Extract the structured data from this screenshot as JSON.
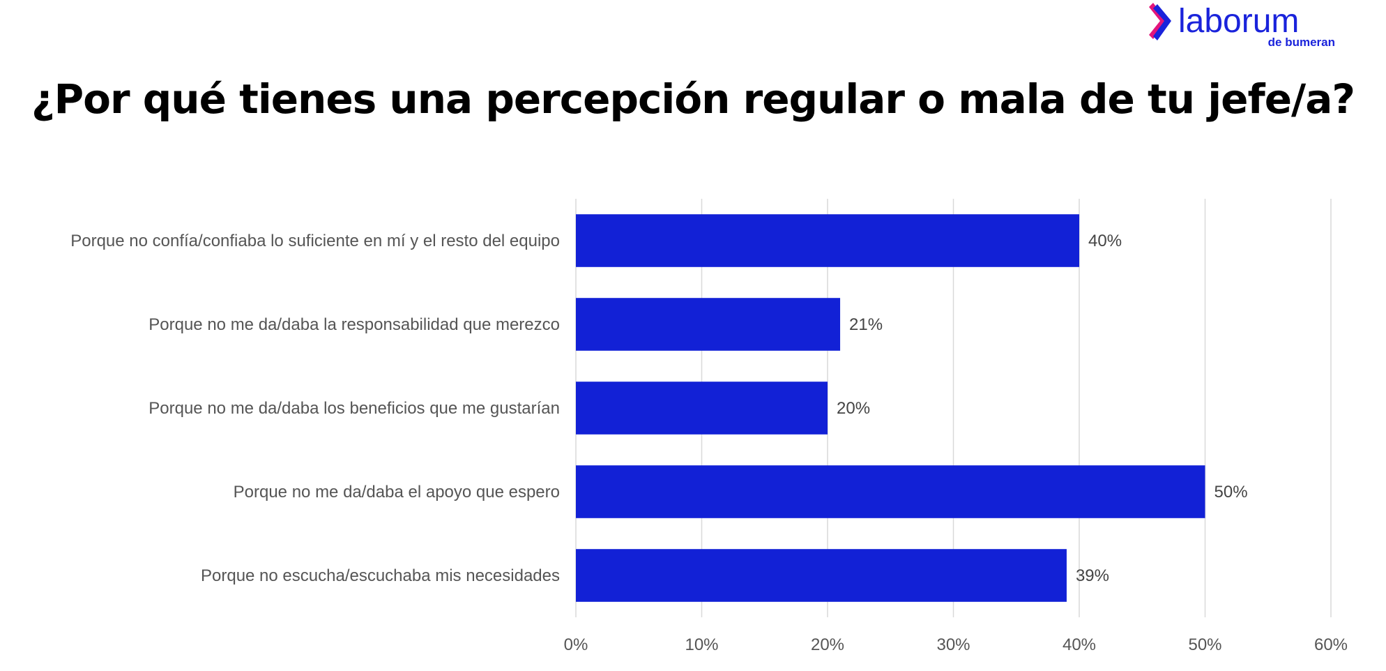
{
  "brand": {
    "name": "laborum",
    "tagline": "de bumeran",
    "color_primary": "#1A23DB",
    "color_accent": "#E3157B"
  },
  "chart_data": {
    "type": "bar",
    "orientation": "horizontal",
    "title": "¿Por qué tienes una percepción regular o mala de tu jefe/a?",
    "categories": [
      "Porque no confía/confiaba lo suficiente en mí y el resto del equipo",
      "Porque no me da/daba la responsabilidad que merezco",
      "Porque no me da/daba los beneficios que me gustarían",
      "Porque no me da/daba el apoyo que espero",
      "Porque no escucha/escuchaba mis necesidades"
    ],
    "values": [
      40,
      21,
      20,
      50,
      39
    ],
    "data_labels": [
      "40%",
      "21%",
      "20%",
      "50%",
      "39%"
    ],
    "xlim": [
      0,
      60
    ],
    "xticks": [
      0,
      10,
      20,
      30,
      40,
      50,
      60
    ],
    "xtick_labels": [
      "0%",
      "10%",
      "20%",
      "30%",
      "40%",
      "50%",
      "60%"
    ],
    "grid": "vertical",
    "legend": "none",
    "bar_color": "#1221D6",
    "grid_color": "#D9D9D9"
  }
}
